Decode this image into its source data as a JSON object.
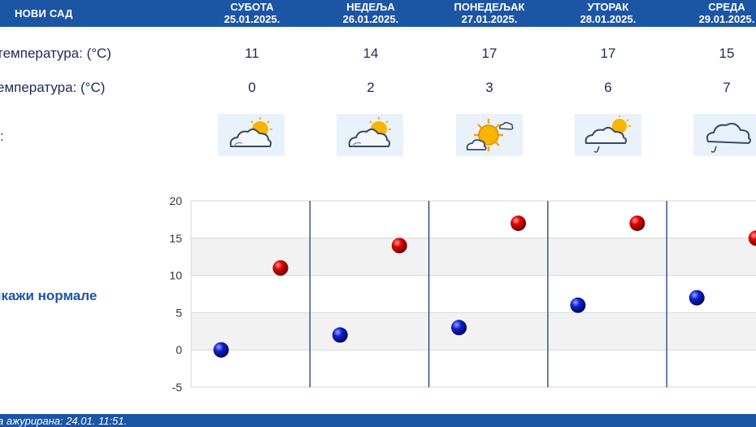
{
  "header": {
    "city": "НОВИ САД",
    "days": [
      {
        "name": "СУБОТА",
        "date": "25.01.2025."
      },
      {
        "name": "НЕДЕЉА",
        "date": "26.01.2025."
      },
      {
        "name": "ПОНЕДЕЉАК",
        "date": "27.01.2025."
      },
      {
        "name": "УТОРАК",
        "date": "28.01.2025."
      },
      {
        "name": "СРЕДА",
        "date": "29.01.2025."
      }
    ]
  },
  "rows": {
    "max_label": "температура: (°C)",
    "min_label": "емпература: (°C)",
    "icon_label": ":",
    "max": [
      "11",
      "14",
      "17",
      "17",
      "15"
    ],
    "min": [
      "0",
      "2",
      "3",
      "6",
      "7"
    ]
  },
  "weather_icons": [
    "partly-cloudy-icon",
    "partly-cloudy-icon",
    "sunny-cloud-icon",
    "partly-cloudy-rain-icon",
    "cloud-rain-icon"
  ],
  "normals_link": "икажи нормале",
  "footer": {
    "updated": "а ажурирана:  24.01. 11:51."
  },
  "colors": {
    "accent": "#1c55a4",
    "max_dot": "#d40000",
    "min_dot": "#0a17b8"
  },
  "chart_data": {
    "type": "scatter",
    "categories": [
      "25.01.2025.",
      "26.01.2025.",
      "27.01.2025.",
      "28.01.2025.",
      "29.01.2025."
    ],
    "series": [
      {
        "values": [
          11,
          14,
          17,
          17,
          15
        ]
      },
      {
        "values": [
          0,
          2,
          3,
          6,
          7
        ]
      }
    ],
    "yticks": [
      "20",
      "15",
      "10",
      "5",
      "0",
      "-5"
    ],
    "ylim": [
      -5,
      20
    ],
    "grid": true
  }
}
